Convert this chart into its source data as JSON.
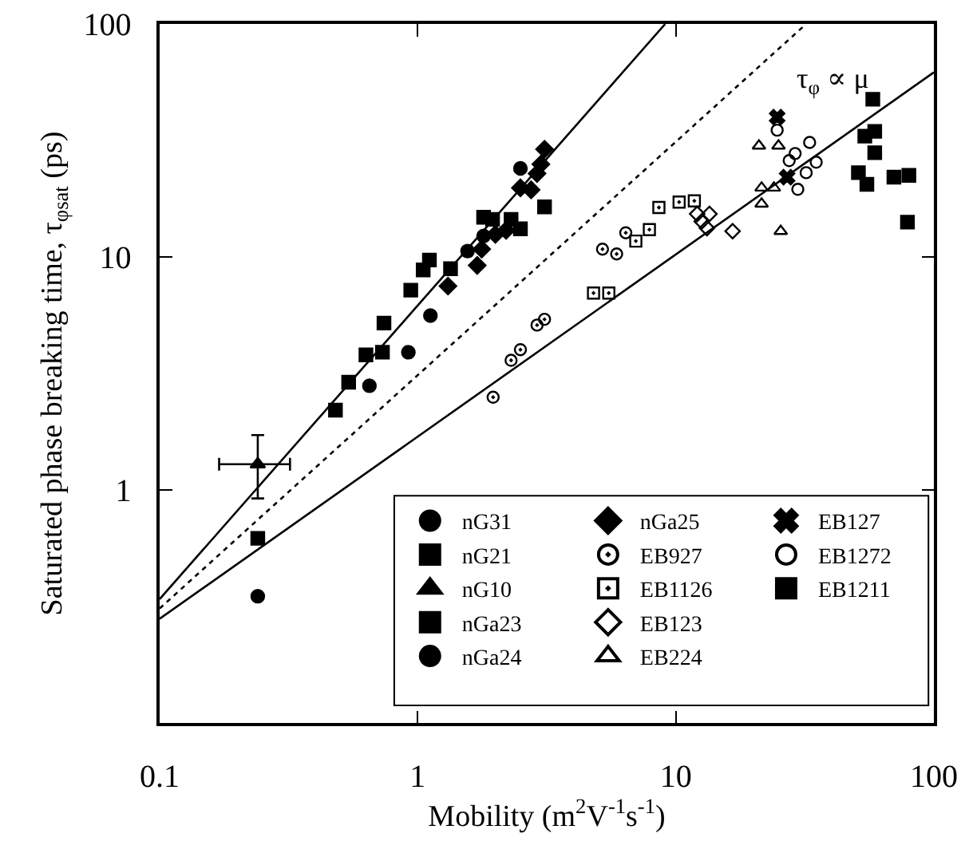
{
  "chart_data": {
    "type": "scatter",
    "xlabel": "Mobility (m$^{2}$V$^{-1}$s$^{-1}$)",
    "ylabel": "Saturated phase breaking time, τ$_{φsat}$ (ps)",
    "log": "xy",
    "grid": false,
    "legend": "bottom right",
    "xlim": [
      0.1,
      100
    ],
    "xticks": [
      0.1,
      1,
      10,
      100
    ],
    "ylim": [
      0.1,
      100
    ],
    "yticks": [
      1,
      10,
      100
    ],
    "annotations": [
      "τ$_{φ}$ ∝ μ"
    ],
    "series": [
      {
        "name": "nG31",
        "color": "#000000",
        "marker": "circle",
        "x": [
          0.24
        ],
        "values": [
          0.35
        ]
      },
      {
        "name": "nG21",
        "color": "#000000",
        "marker": "square",
        "x": [
          0.24
        ],
        "values": [
          0.62
        ]
      },
      {
        "name": "nG10",
        "color": "#000000",
        "marker": "triangle",
        "x": [
          0.24
        ],
        "values": [
          1.29
        ],
        "errors": [
          [
            0.92,
            1.72
          ]
        ],
        "xerrors": [
          [
            0.17,
            0.32
          ]
        ]
      },
      {
        "name": "nGa23",
        "color": "#000000",
        "marker": "square",
        "x": [
          0.48,
          0.54,
          0.63,
          0.73,
          0.74,
          0.94,
          1.05,
          1.11,
          1.34,
          1.8,
          1.95,
          2.3,
          2.5,
          3.1
        ],
        "values": [
          2.2,
          2.9,
          3.8,
          3.9,
          5.2,
          7.2,
          8.8,
          9.7,
          8.9,
          14.8,
          14.5,
          14.5,
          13.2,
          16.4
        ]
      },
      {
        "name": "nGa24",
        "color": "#000000",
        "marker": "circle",
        "x": [
          0.65,
          0.92,
          1.12,
          1.56,
          1.8,
          2.5
        ],
        "values": [
          2.8,
          3.9,
          5.6,
          10.6,
          12.3,
          24
        ]
      },
      {
        "name": "nGa25",
        "color": "#000000",
        "marker": "diamond",
        "x": [
          1.31,
          1.7,
          1.77,
          2.0,
          2.2,
          2.5,
          2.75,
          2.9,
          3.0,
          3.1
        ],
        "values": [
          7.5,
          9.2,
          10.8,
          12.5,
          13,
          19.8,
          19.4,
          22.8,
          25,
          29
        ]
      },
      {
        "name": "EB927",
        "color": "#000000",
        "marker": "circle-dot",
        "x": [
          1.96,
          2.3,
          2.5,
          2.9,
          3.1,
          5.2,
          5.9,
          6.4
        ],
        "values": [
          2.5,
          3.6,
          4.0,
          5.1,
          5.4,
          10.8,
          10.3,
          12.7
        ]
      },
      {
        "name": "EB1126",
        "color": "#000000",
        "marker": "square-dot",
        "x": [
          4.8,
          5.5,
          7.0,
          7.9,
          8.6,
          10.3,
          11.8
        ],
        "values": [
          7.0,
          7.0,
          11.7,
          13.1,
          16.3,
          17.2,
          17.4
        ]
      },
      {
        "name": "EB123",
        "color": "#000000",
        "marker": "diamond-open",
        "x": [
          12.1,
          12.6,
          13.2,
          13.5,
          16.6
        ],
        "values": [
          15.3,
          14.2,
          13.3,
          15.3,
          12.9
        ]
      },
      {
        "name": "EB224",
        "color": "#000000",
        "marker": "triangle-open",
        "x": [
          21,
          21.5,
          21.5,
          24,
          25,
          25.5
        ],
        "values": [
          30,
          19.8,
          16.9,
          19.8,
          30,
          12.9
        ]
      },
      {
        "name": "EB127",
        "color": "#000000",
        "marker": "cross",
        "x": [
          24.7,
          27
        ],
        "values": [
          39.8,
          22
        ]
      },
      {
        "name": "EB1272",
        "color": "#000000",
        "marker": "circle-open",
        "x": [
          24.7,
          27.5,
          29,
          29.7,
          32,
          33,
          35
        ],
        "values": [
          35,
          25.9,
          27.8,
          19.5,
          23,
          31,
          25.5
        ]
      },
      {
        "name": "EB1211",
        "color": "#000000",
        "marker": "square",
        "x": [
          51,
          54,
          55,
          58,
          59,
          59,
          70,
          79,
          80
        ],
        "values": [
          23,
          33,
          20.5,
          47.5,
          34.6,
          28,
          22,
          14.1,
          22.4
        ]
      },
      {
        "type": "line",
        "color": "#000000",
        "line_style": "solid",
        "x": [
          0.1,
          9.1
        ],
        "values": [
          0.34,
          100
        ]
      },
      {
        "type": "line",
        "color": "#000000",
        "line_style": "dotted",
        "x": [
          0.1,
          32
        ],
        "values": [
          0.31,
          100
        ]
      },
      {
        "type": "line",
        "color": "#000000",
        "line_style": "solid",
        "x": [
          0.1,
          100
        ],
        "values": [
          0.28,
          62
        ]
      }
    ]
  }
}
